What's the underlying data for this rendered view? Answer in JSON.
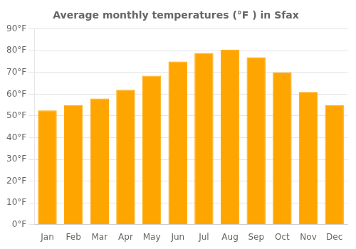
{
  "chart_data": {
    "type": "bar",
    "title": "Average monthly temperatures (°F ) in Sfax",
    "categories": [
      "Jan",
      "Feb",
      "Mar",
      "Apr",
      "May",
      "Jun",
      "Jul",
      "Aug",
      "Sep",
      "Oct",
      "Nov",
      "Dec"
    ],
    "values": [
      52.5,
      55.0,
      58.0,
      62.0,
      68.5,
      75.0,
      79.0,
      80.5,
      77.0,
      70.0,
      61.0,
      55.0
    ],
    "color": "#FFA500",
    "ylim": [
      0,
      90
    ],
    "yticks": [
      {
        "value": 0,
        "label": "0°F"
      },
      {
        "value": 10,
        "label": "10°F"
      },
      {
        "value": 20,
        "label": "20°F"
      },
      {
        "value": 30,
        "label": "30°F"
      },
      {
        "value": 40,
        "label": "40°F"
      },
      {
        "value": 50,
        "label": "50°F"
      },
      {
        "value": 60,
        "label": "60°F"
      },
      {
        "value": 70,
        "label": "70°F"
      },
      {
        "value": 80,
        "label": "80°F"
      },
      {
        "value": 90,
        "label": "90°F"
      }
    ],
    "grid": true
  }
}
